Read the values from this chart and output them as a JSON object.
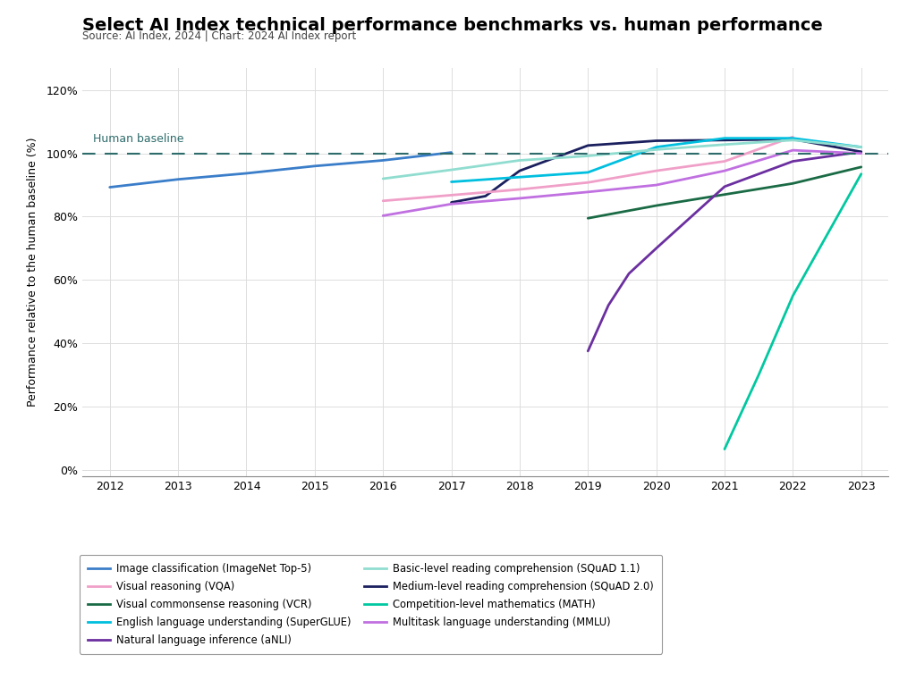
{
  "title": "Select AI Index technical performance benchmarks vs. human performance",
  "source": "Source: AI Index, 2024 | Chart: 2024 AI Index report",
  "ylabel": "Performance relative to the human baseline (%)",
  "human_baseline_label": "Human baseline",
  "xlim": [
    2011.6,
    2023.4
  ],
  "ylim": [
    -0.02,
    1.27
  ],
  "yticks": [
    0.0,
    0.2,
    0.4,
    0.6,
    0.8,
    1.0,
    1.2
  ],
  "ytick_labels": [
    "0%",
    "20%",
    "40%",
    "60%",
    "80%",
    "100%",
    "120%"
  ],
  "xticks": [
    2012,
    2013,
    2014,
    2015,
    2016,
    2017,
    2018,
    2019,
    2020,
    2021,
    2022,
    2023
  ],
  "series": [
    {
      "label": "Image classification (ImageNet Top-5)",
      "color": "#3A7DC9",
      "linewidth": 2.0,
      "x": [
        2012,
        2013,
        2014,
        2015,
        2016,
        2017
      ],
      "y": [
        0.893,
        0.918,
        0.937,
        0.96,
        0.978,
        1.003
      ]
    },
    {
      "label": "Visual commonsense reasoning (VCR)",
      "color": "#1A6B45",
      "linewidth": 2.0,
      "x": [
        2019,
        2020,
        2021,
        2022,
        2023
      ],
      "y": [
        0.795,
        0.835,
        0.87,
        0.905,
        0.957
      ]
    },
    {
      "label": "Natural language inference (aNLI)",
      "color": "#6B2FA0",
      "linewidth": 2.0,
      "x": [
        2019,
        2019.3,
        2019.6,
        2020,
        2021,
        2022,
        2023
      ],
      "y": [
        0.375,
        0.52,
        0.62,
        0.7,
        0.895,
        0.975,
        1.005
      ]
    },
    {
      "label": "Medium-level reading comprehension (SQuAD 2.0)",
      "color": "#1A1F5E",
      "linewidth": 2.0,
      "x": [
        2017,
        2017.5,
        2018,
        2019,
        2020,
        2021,
        2022,
        2023
      ],
      "y": [
        0.845,
        0.865,
        0.945,
        1.025,
        1.04,
        1.042,
        1.045,
        1.005
      ]
    },
    {
      "label": "Multitask language understanding (MMLU)",
      "color": "#C070E0",
      "linewidth": 2.0,
      "x": [
        2016,
        2017,
        2018,
        2019,
        2020,
        2021,
        2022,
        2023
      ],
      "y": [
        0.803,
        0.84,
        0.858,
        0.878,
        0.9,
        0.945,
        1.01,
        1.0
      ]
    },
    {
      "label": "Visual reasoning (VQA)",
      "color": "#F0A0C8",
      "linewidth": 2.0,
      "x": [
        2016,
        2017,
        2018,
        2019,
        2020,
        2021,
        2022
      ],
      "y": [
        0.85,
        0.868,
        0.886,
        0.908,
        0.945,
        0.975,
        1.052
      ]
    },
    {
      "label": "English language understanding (SuperGLUE)",
      "color": "#00BFDF",
      "linewidth": 2.0,
      "x": [
        2017,
        2018,
        2019,
        2020,
        2021,
        2022,
        2023
      ],
      "y": [
        0.91,
        0.925,
        0.94,
        1.02,
        1.048,
        1.048,
        1.02
      ]
    },
    {
      "label": "Basic-level reading comprehension (SQuAD 1.1)",
      "color": "#90DDD0",
      "linewidth": 2.0,
      "x": [
        2016,
        2017,
        2018,
        2019,
        2020,
        2021,
        2022,
        2023
      ],
      "y": [
        0.92,
        0.948,
        0.978,
        0.992,
        1.012,
        1.028,
        1.042,
        1.02
      ]
    },
    {
      "label": "Competition-level mathematics (MATH)",
      "color": "#00C8A0",
      "linewidth": 2.0,
      "x": [
        2021,
        2021.5,
        2022,
        2023
      ],
      "y": [
        0.065,
        0.3,
        0.55,
        0.935
      ]
    }
  ],
  "background_color": "#FFFFFF",
  "grid_color": "#DDDDDD",
  "title_fontsize": 14,
  "source_fontsize": 8.5,
  "ylabel_fontsize": 9,
  "tick_fontsize": 9,
  "legend_fontsize": 8.3,
  "human_baseline_color": "#2E6B6B",
  "legend_order": [
    0,
    5,
    1,
    6,
    2,
    7,
    3,
    8,
    4
  ]
}
